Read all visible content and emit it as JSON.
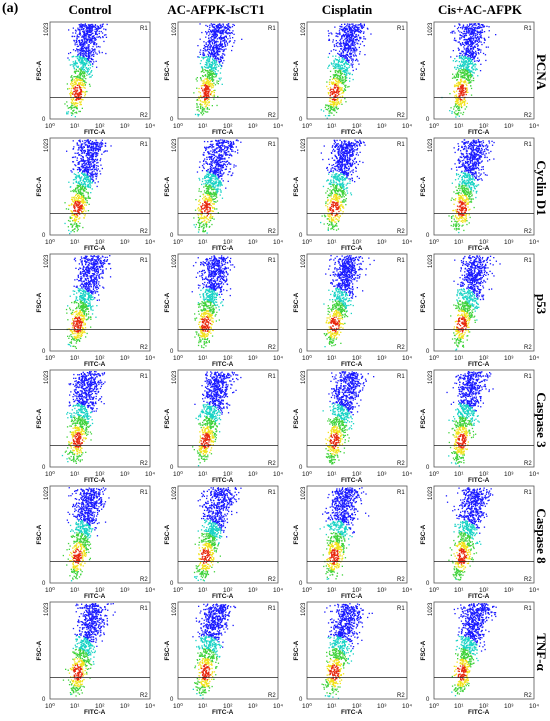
{
  "figure": {
    "panel_label": "(a)",
    "columns": [
      "Control",
      "AC-AFPK-IsCT1",
      "Cisplatin",
      "Cis+AC-AFPK"
    ],
    "rows": [
      "PCNA",
      "Cyclin D1",
      "p53",
      "Caspase 3",
      "Caspase 8",
      "TNF-α"
    ]
  },
  "plot_text": {
    "xlabel": "FITC-A",
    "ylabel": "FSC-A",
    "y_top_tick": "1023",
    "y_zero_tick": "0",
    "x_ticks": [
      "10⁰",
      "10¹",
      "10²",
      "10³",
      "10⁴"
    ],
    "gate_upper": "R1",
    "gate_lower": "R2"
  },
  "colors": {
    "density_low": "#1a1aff",
    "density_mid": "#19d3c5",
    "density_midhigh": "#3fd23a",
    "density_high": "#f2e11a",
    "density_peak": "#e8280e"
  }
}
